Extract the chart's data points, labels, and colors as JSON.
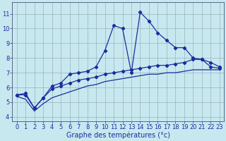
{
  "background_color": "#c8e8f0",
  "grid_color": "#9ab0bc",
  "line_color": "#1a2d9e",
  "xlabel": "Graphe des températures (°c)",
  "xlabel_fontsize": 7,
  "yticks": [
    4,
    5,
    6,
    7,
    8,
    9,
    10,
    11
  ],
  "ylim": [
    3.7,
    11.8
  ],
  "xlim": [
    -0.5,
    23.5
  ],
  "line_jagged_x": [
    0,
    1,
    2,
    3,
    4,
    5,
    6,
    7,
    8,
    9,
    10,
    11,
    12,
    13,
    14,
    15,
    16,
    17,
    18,
    19,
    20,
    21,
    22,
    23
  ],
  "line_jagged_y": [
    5.5,
    5.6,
    4.6,
    5.3,
    6.1,
    6.3,
    6.9,
    7.0,
    7.1,
    7.4,
    8.5,
    10.2,
    10.0,
    7.0,
    11.1,
    10.5,
    9.7,
    9.2,
    8.7,
    8.7,
    8.0,
    7.9,
    7.4,
    7.3
  ],
  "line_mid_x": [
    0,
    1,
    2,
    3,
    4,
    5,
    6,
    7,
    8,
    9,
    10,
    11,
    12,
    13,
    14,
    15,
    16,
    17,
    18,
    19,
    20,
    21,
    22,
    23
  ],
  "line_mid_y": [
    5.5,
    5.5,
    4.6,
    5.3,
    5.9,
    6.1,
    6.3,
    6.5,
    6.6,
    6.7,
    6.9,
    7.0,
    7.1,
    7.2,
    7.3,
    7.4,
    7.5,
    7.5,
    7.6,
    7.7,
    7.9,
    7.9,
    7.7,
    7.4
  ],
  "line_smooth_x": [
    0,
    1,
    2,
    3,
    4,
    5,
    6,
    7,
    8,
    9,
    10,
    11,
    12,
    13,
    14,
    15,
    16,
    17,
    18,
    19,
    20,
    21,
    22,
    23
  ],
  "line_smooth_y": [
    5.4,
    5.2,
    4.4,
    4.9,
    5.3,
    5.5,
    5.7,
    5.9,
    6.1,
    6.2,
    6.4,
    6.5,
    6.6,
    6.7,
    6.8,
    6.9,
    6.9,
    7.0,
    7.0,
    7.1,
    7.2,
    7.2,
    7.2,
    7.2
  ],
  "tick_fontsize": 6,
  "markersize": 2.2,
  "linewidth": 0.9
}
